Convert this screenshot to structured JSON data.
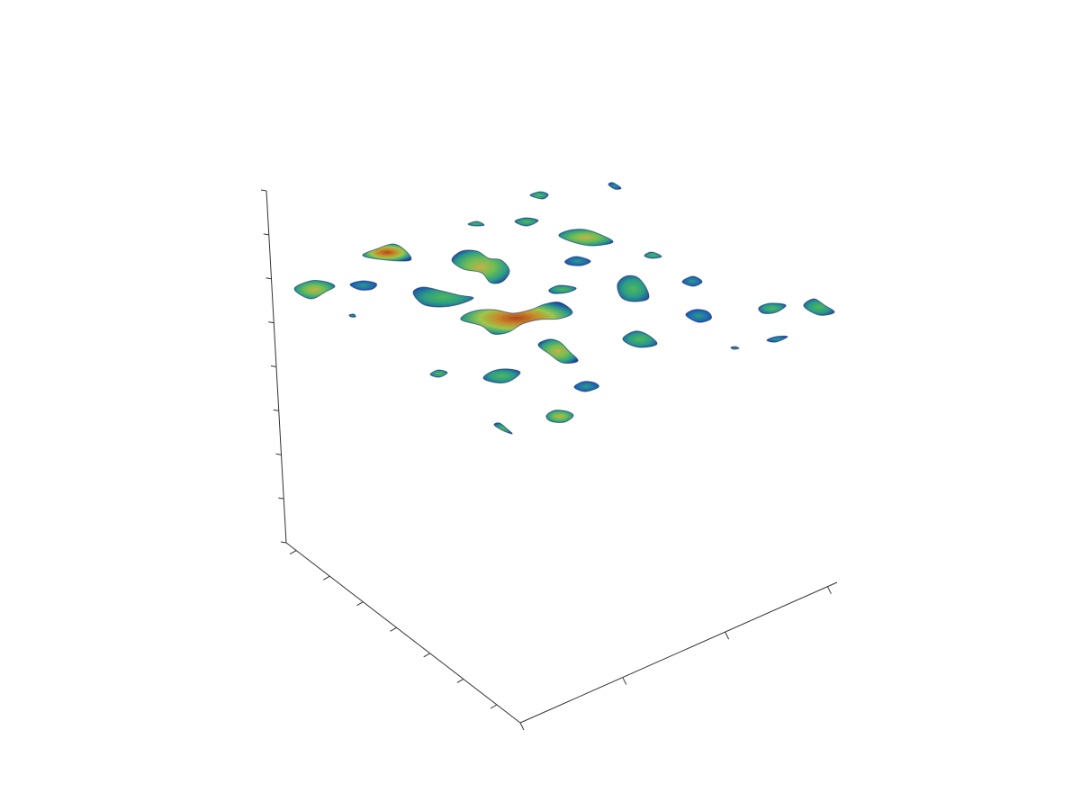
{
  "chart_data": {
    "type": "surface3d",
    "title": "",
    "xlabel": "",
    "ylabel": "",
    "zlabel": "",
    "grid": false,
    "legend": "none",
    "colormap": [
      "#1a3fa8",
      "#1f6bb0",
      "#2a9c86",
      "#4fb85a",
      "#9cc84a",
      "#c88a2a",
      "#b0471c"
    ],
    "axis_edge_color": "#333333",
    "tick_counts": {
      "vertical": 9,
      "left_depth": 7,
      "right_depth": 4
    },
    "blobs": [
      {
        "name": "blob-01",
        "intensity": 0.55,
        "points": [
          [
            327,
            321
          ],
          [
            345,
            312
          ],
          [
            362,
            313
          ],
          [
            372,
            318
          ],
          [
            362,
            324
          ],
          [
            345,
            332
          ]
        ]
      },
      {
        "name": "blob-02",
        "intensity": 0.25,
        "points": [
          [
            389,
            316
          ],
          [
            403,
            312
          ],
          [
            418,
            315
          ],
          [
            414,
            321
          ],
          [
            400,
            322
          ]
        ]
      },
      {
        "name": "blob-03",
        "intensity": 0.85,
        "points": [
          [
            403,
            284
          ],
          [
            420,
            276
          ],
          [
            437,
            271
          ],
          [
            450,
            278
          ],
          [
            456,
            289
          ],
          [
            430,
            289
          ]
        ]
      },
      {
        "name": "blob-04",
        "intensity": 0.1,
        "points": [
          [
            388,
            350
          ],
          [
            393,
            349
          ],
          [
            395,
            352
          ],
          [
            390,
            352
          ]
        ]
      },
      {
        "name": "blob-05",
        "intensity": 0.45,
        "points": [
          [
            459,
            325
          ],
          [
            470,
            319
          ],
          [
            490,
            323
          ],
          [
            510,
            328
          ],
          [
            526,
            331
          ],
          [
            510,
            338
          ],
          [
            490,
            341
          ],
          [
            470,
            338
          ]
        ]
      },
      {
        "name": "blob-06",
        "intensity": 0.65,
        "points": [
          [
            502,
            289
          ],
          [
            513,
            279
          ],
          [
            530,
            279
          ],
          [
            543,
            287
          ],
          [
            557,
            289
          ],
          [
            566,
            301
          ],
          [
            558,
            313
          ],
          [
            545,
            314
          ],
          [
            535,
            303
          ],
          [
            515,
            299
          ]
        ]
      },
      {
        "name": "blob-07",
        "intensity": 0.35,
        "points": [
          [
            520,
            249
          ],
          [
            530,
            246
          ],
          [
            538,
            250
          ],
          [
            528,
            251
          ]
        ]
      },
      {
        "name": "blob-08",
        "intensity": 0.3,
        "points": [
          [
            572,
            246
          ],
          [
            584,
            242
          ],
          [
            598,
            245
          ],
          [
            585,
            251
          ]
        ]
      },
      {
        "name": "blob-09",
        "intensity": 0.3,
        "points": [
          [
            589,
            217
          ],
          [
            600,
            213
          ],
          [
            609,
            216
          ],
          [
            603,
            221
          ]
        ]
      },
      {
        "name": "blob-10",
        "intensity": 0.2,
        "points": [
          [
            676,
            205
          ],
          [
            681,
            203
          ],
          [
            690,
            209
          ],
          [
            683,
            210
          ]
        ]
      },
      {
        "name": "blob-11",
        "intensity": 0.6,
        "points": [
          [
            621,
            262
          ],
          [
            632,
            256
          ],
          [
            650,
            255
          ],
          [
            668,
            261
          ],
          [
            681,
            269
          ],
          [
            660,
            273
          ],
          [
            640,
            270
          ]
        ]
      },
      {
        "name": "blob-12",
        "intensity": 0.25,
        "points": [
          [
            628,
            290
          ],
          [
            640,
            285
          ],
          [
            656,
            290
          ],
          [
            646,
            295
          ],
          [
            632,
            294
          ]
        ]
      },
      {
        "name": "blob-13",
        "intensity": 0.9,
        "points": [
          [
            512,
            355
          ],
          [
            525,
            346
          ],
          [
            548,
            344
          ],
          [
            570,
            348
          ],
          [
            590,
            344
          ],
          [
            605,
            338
          ],
          [
            622,
            336
          ],
          [
            636,
            347
          ],
          [
            622,
            354
          ],
          [
            600,
            355
          ],
          [
            580,
            360
          ],
          [
            565,
            369
          ],
          [
            548,
            371
          ],
          [
            535,
            362
          ]
        ]
      },
      {
        "name": "blob-14",
        "intensity": 0.3,
        "points": [
          [
            610,
            322
          ],
          [
            622,
            317
          ],
          [
            640,
            320
          ],
          [
            630,
            325
          ],
          [
            615,
            326
          ]
        ]
      },
      {
        "name": "blob-15",
        "intensity": 0.55,
        "points": [
          [
            598,
            383
          ],
          [
            610,
            377
          ],
          [
            622,
            380
          ],
          [
            632,
            390
          ],
          [
            642,
            401
          ],
          [
            625,
            403
          ],
          [
            610,
            393
          ]
        ]
      },
      {
        "name": "blob-16",
        "intensity": 0.45,
        "points": [
          [
            686,
            316
          ],
          [
            695,
            307
          ],
          [
            708,
            308
          ],
          [
            718,
            320
          ],
          [
            720,
            332
          ],
          [
            703,
            335
          ],
          [
            690,
            330
          ]
        ]
      },
      {
        "name": "blob-17",
        "intensity": 0.35,
        "points": [
          [
            716,
            284
          ],
          [
            724,
            280
          ],
          [
            735,
            285
          ],
          [
            724,
            287
          ]
        ]
      },
      {
        "name": "blob-18",
        "intensity": 0.15,
        "points": [
          [
            758,
            313
          ],
          [
            770,
            307
          ],
          [
            780,
            313
          ],
          [
            770,
            318
          ]
        ]
      },
      {
        "name": "blob-19",
        "intensity": 0.25,
        "points": [
          [
            762,
            350
          ],
          [
            772,
            344
          ],
          [
            786,
            346
          ],
          [
            790,
            354
          ],
          [
            776,
            358
          ]
        ]
      },
      {
        "name": "blob-20",
        "intensity": 0.4,
        "points": [
          [
            692,
            376
          ],
          [
            705,
            368
          ],
          [
            718,
            371
          ],
          [
            730,
            382
          ],
          [
            714,
            386
          ],
          [
            700,
            383
          ]
        ]
      },
      {
        "name": "blob-21",
        "intensity": 0.35,
        "points": [
          [
            843,
            342
          ],
          [
            855,
            337
          ],
          [
            873,
            339
          ],
          [
            862,
            347
          ],
          [
            848,
            348
          ]
        ]
      },
      {
        "name": "blob-22",
        "intensity": 0.3,
        "points": [
          [
            893,
            340
          ],
          [
            904,
            332
          ],
          [
            916,
            339
          ],
          [
            927,
            347
          ],
          [
            910,
            350
          ]
        ]
      },
      {
        "name": "blob-23",
        "intensity": 0.1,
        "points": [
          [
            852,
            378
          ],
          [
            862,
            374
          ],
          [
            875,
            374
          ],
          [
            862,
            380
          ]
        ]
      },
      {
        "name": "blob-24",
        "intensity": 0.05,
        "points": [
          [
            812,
            386
          ],
          [
            817,
            385
          ],
          [
            821,
            387
          ],
          [
            815,
            388
          ]
        ]
      },
      {
        "name": "blob-25",
        "intensity": 0.35,
        "points": [
          [
            537,
            420
          ],
          [
            548,
            412
          ],
          [
            565,
            410
          ],
          [
            578,
            414
          ],
          [
            565,
            424
          ],
          [
            550,
            425
          ]
        ]
      },
      {
        "name": "blob-26",
        "intensity": 0.4,
        "points": [
          [
            478,
            416
          ],
          [
            487,
            411
          ],
          [
            497,
            414
          ],
          [
            488,
            419
          ]
        ]
      },
      {
        "name": "blob-27",
        "intensity": 0.15,
        "points": [
          [
            638,
            430
          ],
          [
            648,
            424
          ],
          [
            660,
            425
          ],
          [
            665,
            430
          ],
          [
            650,
            435
          ]
        ]
      },
      {
        "name": "blob-28",
        "intensity": 0.5,
        "points": [
          [
            607,
            462
          ],
          [
            616,
            456
          ],
          [
            630,
            457
          ],
          [
            637,
            462
          ],
          [
            627,
            469
          ],
          [
            612,
            468
          ]
        ]
      },
      {
        "name": "blob-29",
        "intensity": 0.45,
        "points": [
          [
            549,
            472
          ],
          [
            555,
            470
          ],
          [
            564,
            477
          ],
          [
            569,
            482
          ],
          [
            558,
            478
          ]
        ]
      }
    ]
  }
}
